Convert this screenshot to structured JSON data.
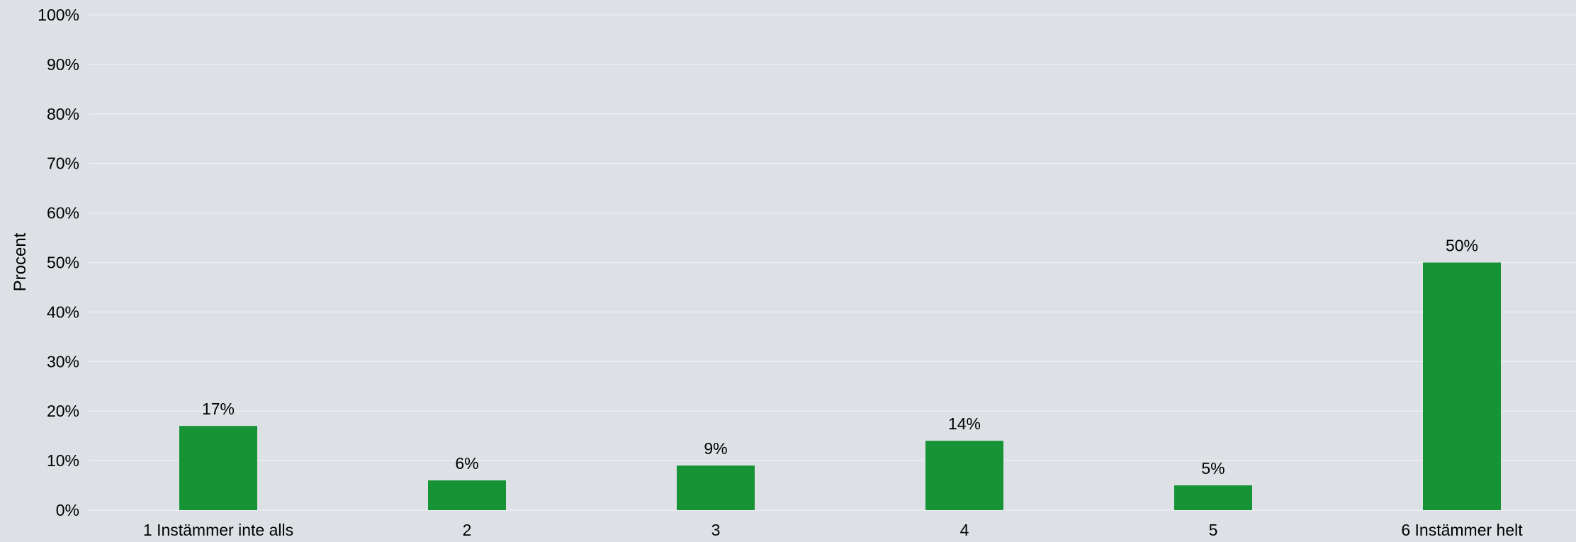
{
  "chart_data": {
    "type": "bar",
    "categories": [
      "1 Instämmer inte alls",
      "2",
      "3",
      "4",
      "5",
      "6 Instämmer helt"
    ],
    "values": [
      17,
      6,
      9,
      14,
      5,
      50
    ],
    "data_labels": [
      "17%",
      "6%",
      "9%",
      "14%",
      "5%",
      "50%"
    ],
    "title": "",
    "xlabel": "",
    "ylabel": "Procent",
    "ylim": [
      0,
      100
    ],
    "yticks": [
      0,
      10,
      20,
      30,
      40,
      50,
      60,
      70,
      80,
      90,
      100
    ],
    "ytick_labels": [
      "0%",
      "10%",
      "20%",
      "30%",
      "40%",
      "50%",
      "60%",
      "70%",
      "80%",
      "90%",
      "100%"
    ],
    "grid": true,
    "legend": "none",
    "colors": {
      "bar": "#159335",
      "background": "#dde0e5",
      "gridline": "#eceef1",
      "text": "#000000"
    }
  }
}
